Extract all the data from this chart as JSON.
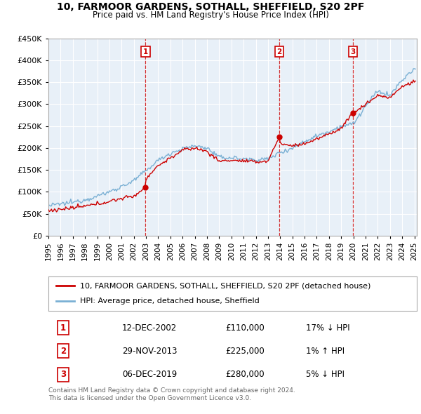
{
  "title": "10, FARMOOR GARDENS, SOTHALL, SHEFFIELD, S20 2PF",
  "subtitle": "Price paid vs. HM Land Registry's House Price Index (HPI)",
  "property_label": "10, FARMOOR GARDENS, SOTHALL, SHEFFIELD, S20 2PF (detached house)",
  "hpi_label": "HPI: Average price, detached house, Sheffield",
  "property_color": "#cc0000",
  "hpi_color": "#7ab0d4",
  "sale_years": [
    2002.958,
    2013.917,
    2019.958
  ],
  "sale_prices": [
    110000,
    225000,
    280000
  ],
  "sale_labels": [
    "1",
    "2",
    "3"
  ],
  "table_data": [
    [
      "1",
      "12-DEC-2002",
      "£110,000",
      "17% ↓ HPI"
    ],
    [
      "2",
      "29-NOV-2013",
      "£225,000",
      "1% ↑ HPI"
    ],
    [
      "3",
      "06-DEC-2019",
      "£280,000",
      "5% ↓ HPI"
    ]
  ],
  "footnote": "Contains HM Land Registry data © Crown copyright and database right 2024.\nThis data is licensed under the Open Government Licence v3.0.",
  "ylim": [
    0,
    450000
  ],
  "yticks": [
    0,
    50000,
    100000,
    150000,
    200000,
    250000,
    300000,
    350000,
    400000,
    450000
  ],
  "chart_bg": "#e8f0f8",
  "background_color": "#ffffff",
  "grid_color": "#ffffff"
}
